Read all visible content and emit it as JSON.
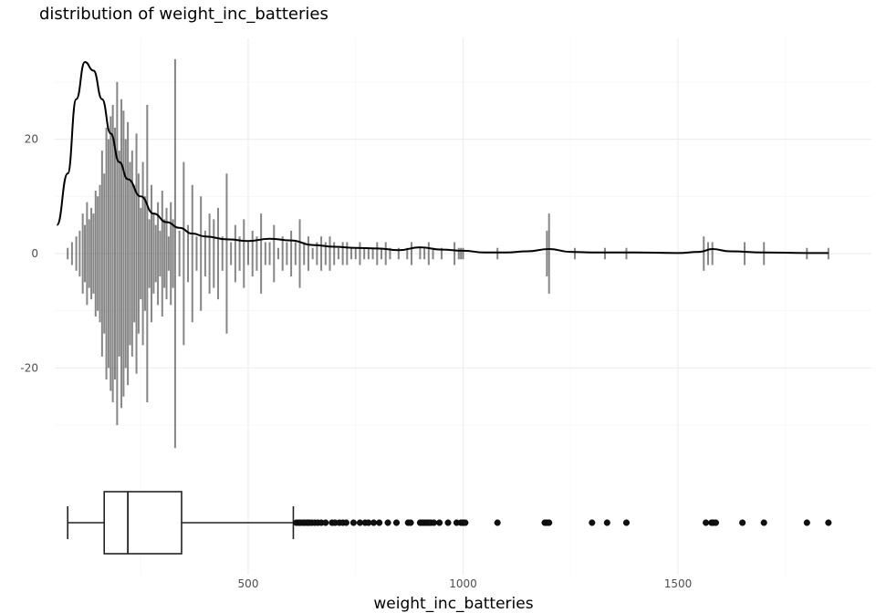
{
  "chart_data": {
    "type": "density-histogram-boxplot",
    "title": "distribution of weight_inc_batteries",
    "xlabel": "weight_inc_batteries",
    "ylabel": "",
    "xlim": [
      55,
      1890
    ],
    "ylim": [
      -37,
      37
    ],
    "grid": true,
    "x_ticks": [
      500,
      1000,
      1500
    ],
    "y_ticks": [
      20,
      0,
      -20
    ],
    "x_tick_labels": [
      "500",
      "1000",
      "1500"
    ],
    "y_tick_labels": [
      "20",
      "0",
      "-20"
    ],
    "histogram": {
      "description": "symmetric bars centered on zero",
      "x": [
        80,
        90,
        100,
        108,
        115,
        120,
        125,
        130,
        135,
        140,
        145,
        150,
        155,
        160,
        165,
        170,
        175,
        180,
        185,
        190,
        195,
        200,
        205,
        210,
        215,
        220,
        225,
        230,
        235,
        240,
        245,
        250,
        255,
        260,
        265,
        270,
        275,
        280,
        285,
        290,
        295,
        300,
        305,
        310,
        315,
        320,
        325,
        330,
        340,
        350,
        360,
        370,
        380,
        390,
        400,
        410,
        420,
        430,
        440,
        450,
        460,
        470,
        480,
        490,
        500,
        510,
        520,
        530,
        540,
        550,
        560,
        570,
        580,
        590,
        600,
        610,
        620,
        630,
        640,
        650,
        660,
        670,
        680,
        690,
        700,
        710,
        720,
        730,
        740,
        750,
        760,
        770,
        780,
        790,
        800,
        810,
        820,
        830,
        850,
        870,
        880,
        900,
        910,
        920,
        930,
        950,
        980,
        990,
        995,
        1000,
        1080,
        1195,
        1200,
        1260,
        1330,
        1380,
        1560,
        1570,
        1580,
        1655,
        1700,
        1800,
        1850
      ],
      "values": [
        1,
        2,
        3,
        4,
        7,
        5,
        9,
        6,
        8,
        7,
        11,
        10,
        12,
        18,
        14,
        22,
        20,
        24,
        26,
        22,
        30,
        18,
        27,
        25,
        20,
        23,
        16,
        18,
        12,
        21,
        14,
        8,
        16,
        10,
        26,
        6,
        12,
        7,
        5,
        9,
        4,
        11,
        6,
        8,
        3,
        9,
        6,
        34,
        4,
        16,
        5,
        12,
        3,
        10,
        4,
        7,
        6,
        8,
        3,
        14,
        2,
        5,
        3,
        6,
        2,
        4,
        3,
        7,
        2,
        2,
        5,
        1,
        3,
        2,
        4,
        2,
        6,
        2,
        3,
        1,
        2,
        3,
        2,
        3,
        2,
        1,
        2,
        2,
        1,
        1,
        2,
        1,
        1,
        1,
        2,
        1,
        2,
        1,
        1,
        1,
        2,
        1,
        1,
        2,
        1,
        1,
        2,
        1,
        1,
        1,
        1,
        4,
        7,
        1,
        1,
        1,
        3,
        2,
        2,
        2,
        2,
        1,
        1
      ]
    },
    "density": {
      "x": [
        55,
        80,
        100,
        120,
        140,
        160,
        180,
        200,
        220,
        250,
        280,
        310,
        340,
        370,
        400,
        450,
        500,
        550,
        600,
        650,
        700,
        750,
        800,
        850,
        900,
        950,
        1000,
        1050,
        1100,
        1150,
        1200,
        1250,
        1300,
        1400,
        1500,
        1550,
        1580,
        1620,
        1700,
        1800,
        1850
      ],
      "y": [
        5,
        14,
        27,
        33.5,
        32,
        27,
        21,
        16,
        13,
        10,
        7,
        5.5,
        4.5,
        3.5,
        3,
        2.5,
        2.2,
        2.6,
        2.3,
        1.5,
        1.2,
        1,
        0.9,
        0.6,
        1.1,
        0.7,
        0.5,
        0.2,
        0.2,
        0.4,
        0.8,
        0.3,
        0.2,
        0.2,
        0.1,
        0.3,
        0.8,
        0.4,
        0.2,
        0.1,
        0.1
      ]
    },
    "boxplot": {
      "whisker_low": 80,
      "q1": 165,
      "median": 220,
      "q3": 345,
      "whisker_high": 605,
      "outliers": [
        612,
        618,
        622,
        628,
        632,
        638,
        642,
        648,
        655,
        662,
        670,
        680,
        695,
        702,
        712,
        720,
        728,
        745,
        760,
        772,
        780,
        792,
        805,
        825,
        845,
        872,
        878,
        900,
        905,
        910,
        915,
        920,
        925,
        932,
        945,
        965,
        985,
        995,
        1000,
        1005,
        1080,
        1190,
        1195,
        1200,
        1300,
        1335,
        1380,
        1565,
        1578,
        1582,
        1588,
        1650,
        1700,
        1800,
        1850
      ]
    }
  }
}
